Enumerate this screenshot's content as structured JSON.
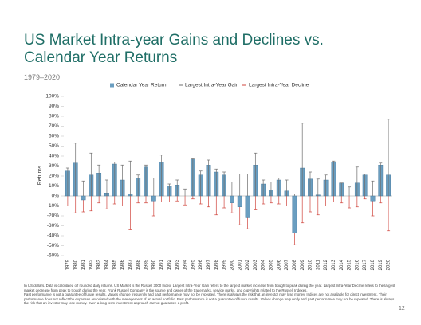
{
  "chart_data": {
    "type": "bar",
    "title": "US Market Intra-year Gains and Declines vs. Calendar Year Returns",
    "subtitle": "1979–2020",
    "y_label": "Returns",
    "categories": [
      "1979",
      "1980",
      "1981",
      "1982",
      "1983",
      "1984",
      "1985",
      "1986",
      "1987",
      "1988",
      "1989",
      "1990",
      "1991",
      "1992",
      "1993",
      "1994",
      "1995",
      "1996",
      "1997",
      "1998",
      "1999",
      "2000",
      "2001",
      "2002",
      "2003",
      "2004",
      "2005",
      "2006",
      "2007",
      "2008",
      "2009",
      "2010",
      "2011",
      "2012",
      "2013",
      "2014",
      "2015",
      "2016",
      "2017",
      "2018",
      "2019",
      "2020"
    ],
    "series": [
      {
        "name": "Calendar Year Return",
        "color": "#6a9ec0",
        "values": [
          25,
          33,
          -4,
          21,
          23,
          3,
          32,
          16,
          2,
          18,
          29,
          -5,
          34,
          10,
          11,
          0,
          37,
          21,
          31,
          24,
          21,
          -7,
          -11,
          -22,
          31,
          12,
          6,
          16,
          5,
          -37,
          28,
          17,
          1,
          16,
          34,
          13,
          0,
          13,
          21,
          -5,
          31,
          21
        ]
      },
      {
        "name": "Largest Intra-Year Gain",
        "color": "#6d6d6d",
        "values": [
          28,
          53,
          15,
          43,
          31,
          16,
          34,
          31,
          35,
          21,
          31,
          18,
          41,
          12,
          16,
          7,
          38,
          25,
          36,
          27,
          24,
          14,
          22,
          22,
          43,
          16,
          14,
          18,
          16,
          2,
          73,
          24,
          17,
          21,
          35,
          13,
          9,
          29,
          22,
          15,
          33,
          77
        ]
      },
      {
        "name": "Largest Intra-Year Decline",
        "color": "#d0453d",
        "values": [
          -10,
          -17,
          -16,
          -15,
          -7,
          -13,
          -8,
          -10,
          -34,
          -7,
          -7,
          -20,
          -6,
          -6,
          -5,
          -9,
          -3,
          -8,
          -11,
          -19,
          -12,
          -17,
          -29,
          -33,
          -14,
          -8,
          -7,
          -8,
          -10,
          -49,
          -27,
          -16,
          -19,
          -10,
          -6,
          -7,
          -12,
          -11,
          -3,
          -20,
          -7,
          -35
        ]
      }
    ],
    "ylim": [
      -60,
      100
    ],
    "yticks": [
      {
        "value": 100,
        "label": "100%"
      },
      {
        "value": 90,
        "label": "90%"
      },
      {
        "value": 80,
        "label": "80%"
      },
      {
        "value": 70,
        "label": "70%"
      },
      {
        "value": 60,
        "label": "60%"
      },
      {
        "value": 50,
        "label": "50%"
      },
      {
        "value": 40,
        "label": "40%"
      },
      {
        "value": 30,
        "label": "30%"
      },
      {
        "value": 20,
        "label": "20%"
      },
      {
        "value": 10,
        "label": "10%"
      },
      {
        "value": 0,
        "label": "0%"
      },
      {
        "value": -10,
        "label": "-10%"
      },
      {
        "value": -20,
        "label": "-20%"
      },
      {
        "value": -30,
        "label": "-30%"
      },
      {
        "value": -40,
        "label": "-40%"
      },
      {
        "value": -50,
        "label": "-50%"
      },
      {
        "value": -60,
        "label": "-60%"
      }
    ],
    "grid": false,
    "legend": "top"
  },
  "footnotes": [
    "In US dollars. Data is calculated off rounded daily returns. US Market is the Russell 3000 Index. Largest Intra-Year Gain refers to the largest market increase from trough to peak during the year. Largest Intra-Year Decline refers to the largest market decrease from peak to trough during the year. Frank Russell Company is the source and owner of the trademarks, service marks, and copyrights related to the Russell Indexes.",
    "Past performance is not a guarantee of future results. Values change frequently and past performance may not be repeated. There is always the risk that an investor may lose money. Indices are not available for direct investment. Their performance does not reflect the expenses associated with the management of an actual portfolio. Past performance is not a guarantee of future results. Values change frequently and past performance may not be repeated. There is always the risk that an investor may lose money. Even a long-term investment approach cannot guarantee a profit."
  ],
  "page_number": "12"
}
